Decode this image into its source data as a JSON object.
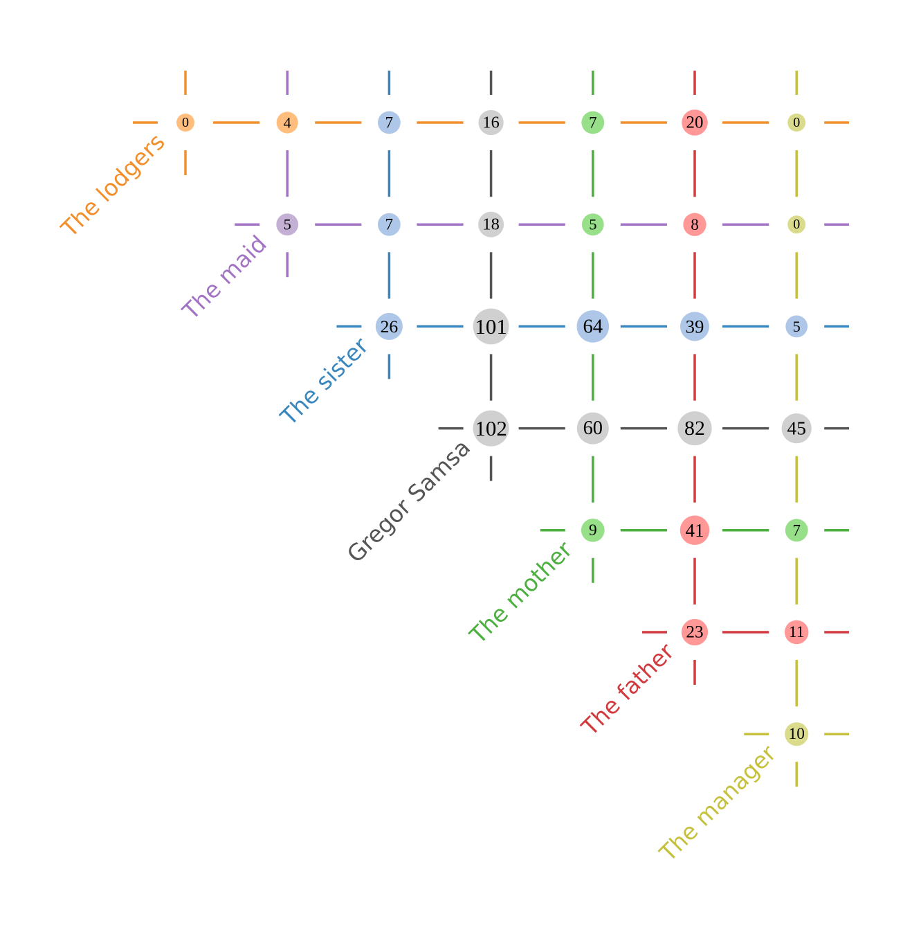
{
  "chart_data": {
    "type": "matrix",
    "characters": [
      {
        "name": "The lodgers",
        "color": "#f28e2b",
        "fill": "#ffbe7d"
      },
      {
        "name": "The maid",
        "color": "#a374c4",
        "fill": "#c5b0d5"
      },
      {
        "name": "The sister",
        "color": "#3a87bf",
        "fill": "#aec7e8"
      },
      {
        "name": "Gregor Samsa",
        "color": "#555555",
        "fill": "#d0d0d0"
      },
      {
        "name": "The mother",
        "color": "#4caf3f",
        "fill": "#98df8a"
      },
      {
        "name": "The father",
        "color": "#d13b3e",
        "fill": "#ff9896"
      },
      {
        "name": "The manager",
        "color": "#c5c13d",
        "fill": "#dbdb8d"
      }
    ],
    "cells": [
      {
        "row": 0,
        "col": 0,
        "value": 0,
        "owner": 0
      },
      {
        "row": 0,
        "col": 1,
        "value": 4,
        "owner": 0
      },
      {
        "row": 0,
        "col": 2,
        "value": 7,
        "owner": 2
      },
      {
        "row": 0,
        "col": 3,
        "value": 16,
        "owner": 3
      },
      {
        "row": 0,
        "col": 4,
        "value": 7,
        "owner": 4
      },
      {
        "row": 0,
        "col": 5,
        "value": 20,
        "owner": 5
      },
      {
        "row": 0,
        "col": 6,
        "value": 0,
        "owner": 6
      },
      {
        "row": 1,
        "col": 1,
        "value": 5,
        "owner": 1
      },
      {
        "row": 1,
        "col": 2,
        "value": 7,
        "owner": 2
      },
      {
        "row": 1,
        "col": 3,
        "value": 18,
        "owner": 3
      },
      {
        "row": 1,
        "col": 4,
        "value": 5,
        "owner": 4
      },
      {
        "row": 1,
        "col": 5,
        "value": 8,
        "owner": 5
      },
      {
        "row": 1,
        "col": 6,
        "value": 0,
        "owner": 6
      },
      {
        "row": 2,
        "col": 2,
        "value": 26,
        "owner": 2
      },
      {
        "row": 2,
        "col": 3,
        "value": 101,
        "owner": 3
      },
      {
        "row": 2,
        "col": 4,
        "value": 64,
        "owner": 2
      },
      {
        "row": 2,
        "col": 5,
        "value": 39,
        "owner": 2
      },
      {
        "row": 2,
        "col": 6,
        "value": 5,
        "owner": 2
      },
      {
        "row": 3,
        "col": 3,
        "value": 102,
        "owner": 3
      },
      {
        "row": 3,
        "col": 4,
        "value": 60,
        "owner": 3
      },
      {
        "row": 3,
        "col": 5,
        "value": 82,
        "owner": 3
      },
      {
        "row": 3,
        "col": 6,
        "value": 45,
        "owner": 3
      },
      {
        "row": 4,
        "col": 4,
        "value": 9,
        "owner": 4
      },
      {
        "row": 4,
        "col": 5,
        "value": 41,
        "owner": 5
      },
      {
        "row": 4,
        "col": 6,
        "value": 7,
        "owner": 4
      },
      {
        "row": 5,
        "col": 5,
        "value": 23,
        "owner": 5
      },
      {
        "row": 5,
        "col": 6,
        "value": 11,
        "owner": 5
      },
      {
        "row": 6,
        "col": 6,
        "value": 10,
        "owner": 6
      }
    ]
  }
}
